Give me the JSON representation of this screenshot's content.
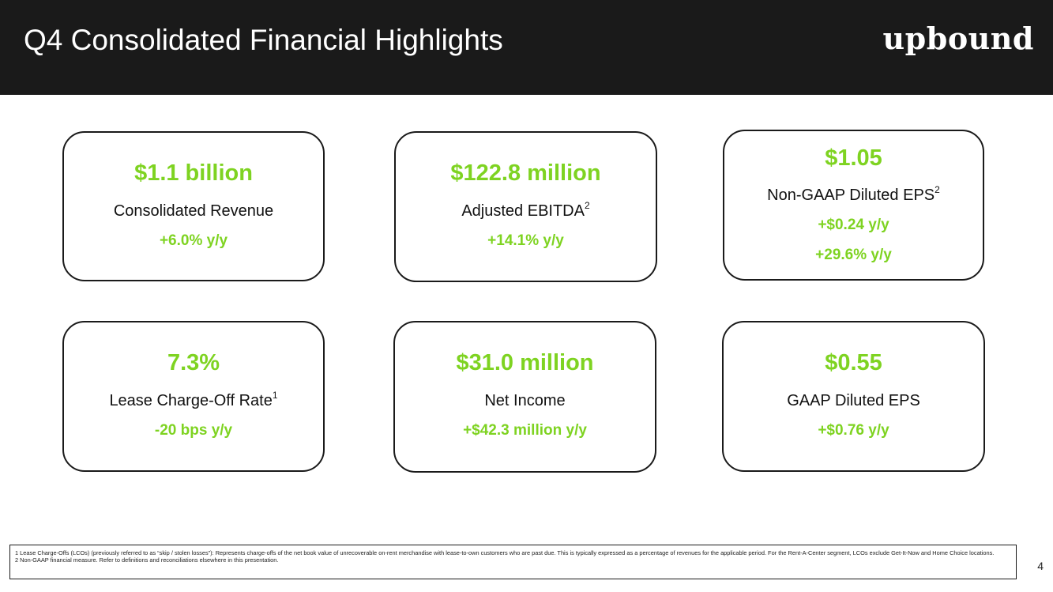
{
  "header": {
    "title": "Q4 Consolidated Financial Highlights",
    "logo": "upbound",
    "background": "#1a1a1a"
  },
  "accent_color": "#7ed321",
  "cards": [
    {
      "value": "$1.1 billion",
      "label": "Consolidated Revenue",
      "sup": "",
      "changes": [
        "+6.0% y/y"
      ]
    },
    {
      "value": "$122.8 million",
      "label": "Adjusted EBITDA",
      "sup": "2",
      "changes": [
        "+14.1% y/y"
      ]
    },
    {
      "value": "$1.05",
      "label": "Non-GAAP Diluted EPS",
      "sup": "2",
      "changes": [
        "+$0.24 y/y",
        "+29.6% y/y"
      ]
    },
    {
      "value": "7.3%",
      "label": "Lease Charge-Off Rate",
      "sup": "1",
      "changes": [
        "-20 bps y/y"
      ]
    },
    {
      "value": "$31.0 million",
      "label": "Net Income",
      "sup": "",
      "changes": [
        "+$42.3 million y/y"
      ]
    },
    {
      "value": "$0.55",
      "label": "GAAP Diluted EPS",
      "sup": "",
      "changes": [
        "+$0.76 y/y"
      ]
    }
  ],
  "footnotes": [
    "1 Lease Charge-Offs (LCOs) (previously referred to as “skip / stolen losses”): Represents charge-offs of the net book value of unrecoverable on-rent merchandise with lease-to-own customers who are past due. This is typically expressed as a percentage of revenues for the applicable period. For the Rent-A-Center segment, LCOs exclude Get-It-Now and Home Choice locations.",
    "2 Non-GAAP financial measure. Refer to definitions and reconciliations elsewhere in this presentation."
  ],
  "page_number": "4"
}
